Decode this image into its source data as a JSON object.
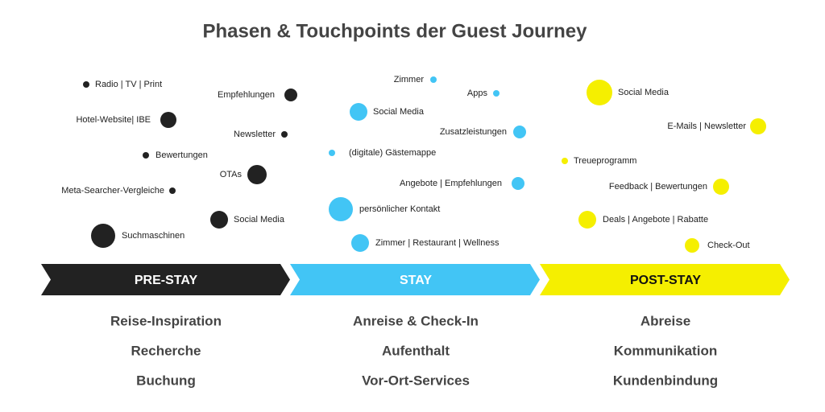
{
  "title": "Phasen & Touchpoints der Guest Journey",
  "phases": [
    {
      "name": "PRE-STAY",
      "activities": [
        "Reise-Inspiration",
        "Recherche",
        "Buchung"
      ],
      "touchpoints": [
        "Radio | TV | Print",
        "Empfehlungen",
        "Hotel-Website| IBE",
        "Newsletter",
        "Bewertungen",
        "OTAs",
        "Meta-Searcher-Vergleiche",
        "Social Media",
        "Suchmaschinen"
      ]
    },
    {
      "name": "STAY",
      "activities": [
        "Anreise & Check-In",
        "Aufenthalt",
        "Vor-Ort-Services"
      ],
      "touchpoints": [
        "Zimmer",
        "Apps",
        "Social Media",
        "Zusatzleistungen",
        "(digitale) Gästemappe",
        "Angebote | Empfehlungen",
        "persönlicher Kontakt",
        "Zimmer | Restaurant | Wellness"
      ]
    },
    {
      "name": "POST-STAY",
      "activities": [
        "Abreise",
        "Kommunikation",
        "Kundenbindung"
      ],
      "touchpoints": [
        "Social Media",
        "E-Mails | Newsletter",
        "Treueprogramm",
        "Feedback | Bewertungen",
        "Deals | Angebote | Rabatte",
        "Check-Out"
      ]
    }
  ]
}
